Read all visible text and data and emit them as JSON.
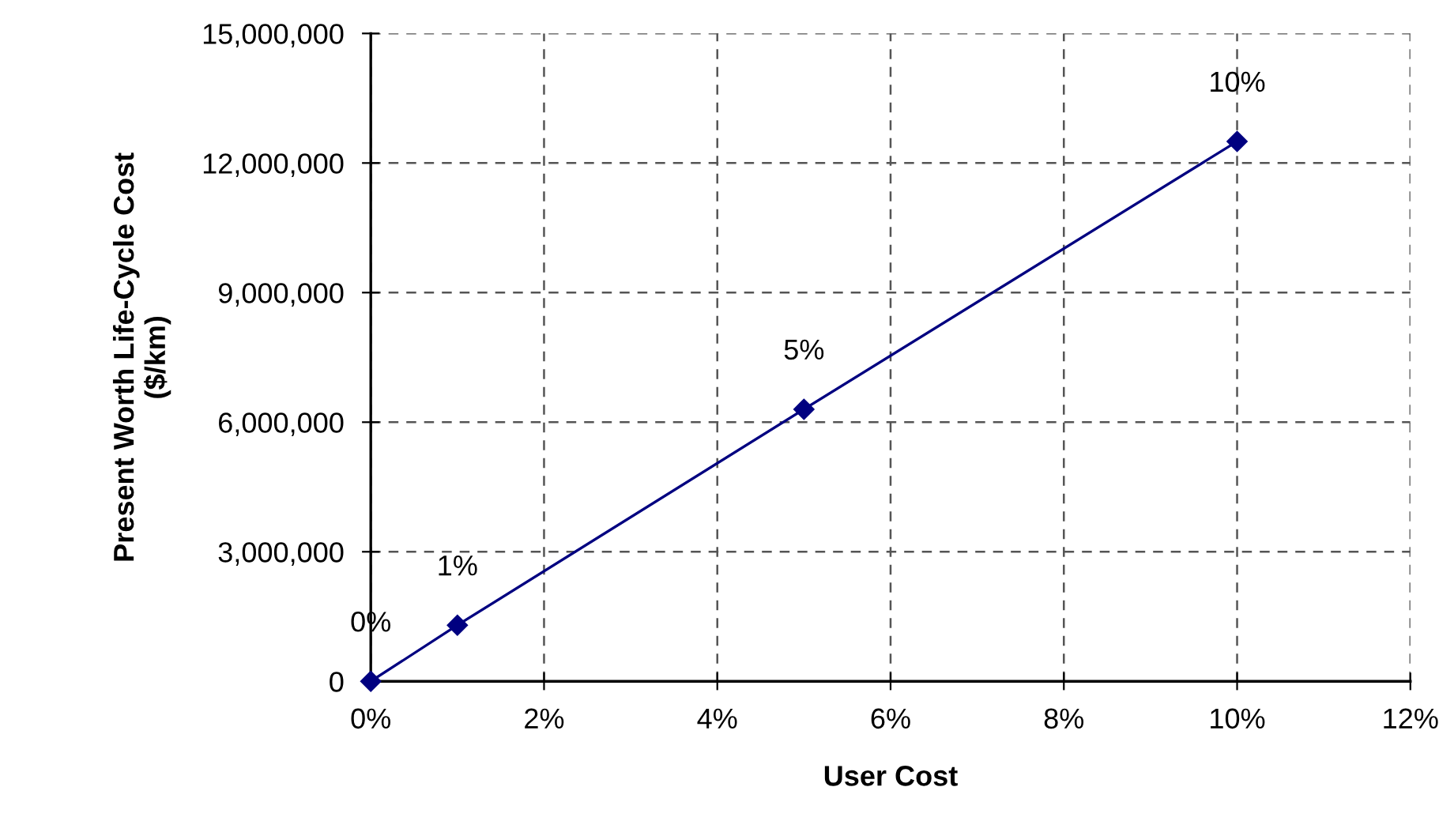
{
  "chart_data": {
    "type": "line",
    "xlabel": "User Cost",
    "ylabel": "Present Worth Life-Cycle Cost\n($/km)",
    "x": [
      0,
      1,
      5,
      10
    ],
    "series": [
      {
        "color": "#000080",
        "values": [
          0,
          1300000,
          6300000,
          12500000
        ]
      }
    ],
    "marker": "diamond",
    "line_style": "solid",
    "grid": true,
    "legend": false,
    "xlim": [
      0,
      12
    ],
    "xticks": [
      {
        "value": 0,
        "label": "0%"
      },
      {
        "value": 2,
        "label": "2%"
      },
      {
        "value": 4,
        "label": "4%"
      },
      {
        "value": 6,
        "label": "6%"
      },
      {
        "value": 8,
        "label": "8%"
      },
      {
        "value": 10,
        "label": "10%"
      },
      {
        "value": 12,
        "label": "12%"
      }
    ],
    "ylim": [
      0,
      15000000
    ],
    "yticks": [
      {
        "value": 0,
        "label": "0"
      },
      {
        "value": 3000000,
        "label": "3,000,000"
      },
      {
        "value": 6000000,
        "label": "6,000,000"
      },
      {
        "value": 9000000,
        "label": "9,000,000"
      },
      {
        "value": 12000000,
        "label": "12,000,000"
      },
      {
        "value": 15000000,
        "label": "15,000,000"
      }
    ],
    "annotations": [
      {
        "text": "0%",
        "x": 0,
        "y": 0
      },
      {
        "text": "1%",
        "x": 1,
        "y": 1300000
      },
      {
        "text": "5%",
        "x": 5,
        "y": 6300000
      },
      {
        "text": "10%",
        "x": 10,
        "y": 12500000
      }
    ]
  }
}
